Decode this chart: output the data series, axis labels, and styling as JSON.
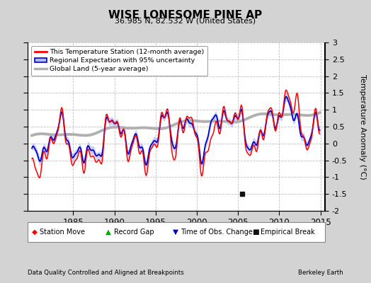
{
  "title": "WISE LONESOME PINE AP",
  "subtitle": "36.985 N, 82.532 W (United States)",
  "ylabel": "Temperature Anomaly (°C)",
  "xlim": [
    1979.5,
    2015.5
  ],
  "ylim": [
    -2.0,
    3.0
  ],
  "yticks": [
    -2,
    -1.5,
    -1,
    -0.5,
    0,
    0.5,
    1,
    1.5,
    2,
    2.5,
    3
  ],
  "xticks": [
    1985,
    1990,
    1995,
    2000,
    2005,
    2010,
    2015
  ],
  "bg_color": "#d3d3d3",
  "plot_bg_color": "#ffffff",
  "grid_color": "#c0c0c0",
  "station_color": "#ff0000",
  "regional_color": "#0000cc",
  "regional_fill_color": "#b0b8f8",
  "global_color": "#b0b0b0",
  "legend_items": [
    "This Temperature Station (12-month average)",
    "Regional Expectation with 95% uncertainty",
    "Global Land (5-year average)"
  ],
  "bottom_legend": [
    {
      "marker": "D",
      "color": "#ff0000",
      "label": "Station Move"
    },
    {
      "marker": "^",
      "color": "#00aa00",
      "label": "Record Gap"
    },
    {
      "marker": "v",
      "color": "#0000cc",
      "label": "Time of Obs. Change"
    },
    {
      "marker": "s",
      "color": "#111111",
      "label": "Empirical Break"
    }
  ],
  "empirical_break_x": 2005.5,
  "empirical_break_y": -1.5,
  "footer_left": "Data Quality Controlled and Aligned at Breakpoints",
  "footer_right": "Berkeley Earth"
}
